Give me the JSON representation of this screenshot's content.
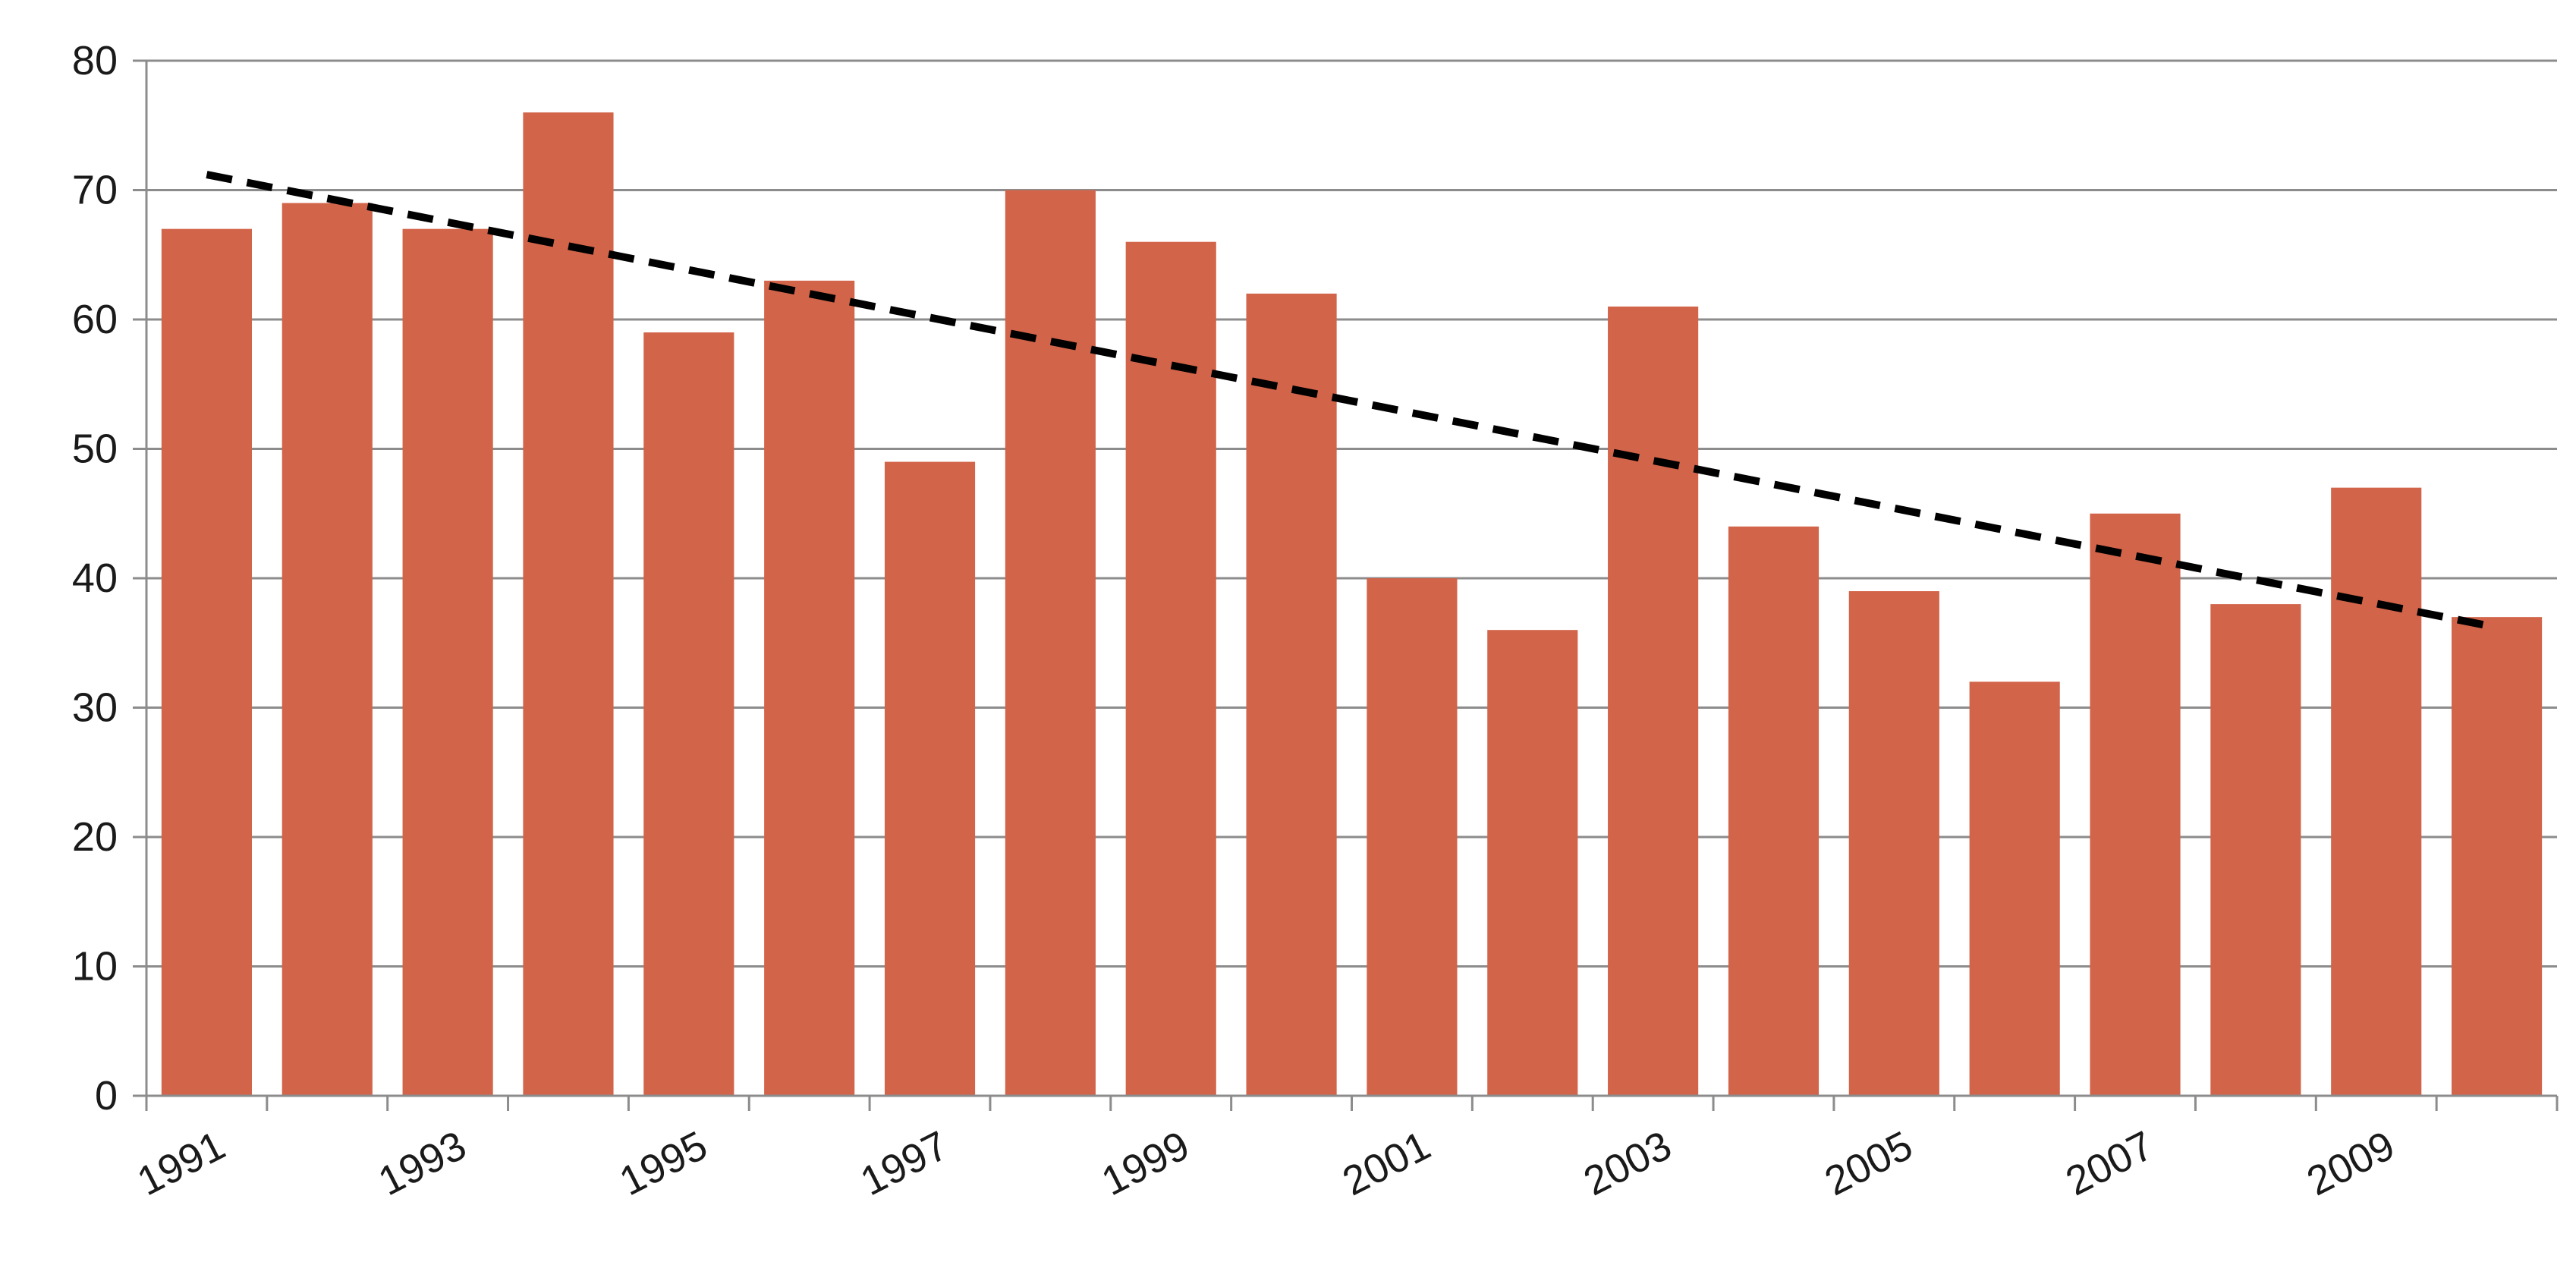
{
  "chart_data": {
    "type": "bar",
    "categories": [
      "1991",
      "1992",
      "1993",
      "1994",
      "1995",
      "1996",
      "1997",
      "1998",
      "1999",
      "2000",
      "2001",
      "2002",
      "2003",
      "2004",
      "2005",
      "2006",
      "2007",
      "2008",
      "2009",
      "2010"
    ],
    "values": [
      67,
      69,
      67,
      76,
      59,
      63,
      49,
      70,
      66,
      62,
      40,
      36,
      61,
      44,
      39,
      32,
      45,
      38,
      47,
      37
    ],
    "x_tick_labels": [
      "1991",
      "1993",
      "1995",
      "1997",
      "1999",
      "2001",
      "2003",
      "2005",
      "2007",
      "2009"
    ],
    "y_ticks": [
      0,
      10,
      20,
      30,
      40,
      50,
      60,
      70,
      80
    ],
    "ylim": [
      0,
      80
    ],
    "title": "",
    "xlabel": "",
    "ylabel": "",
    "grid": true,
    "legend": "none",
    "trendline": {
      "type": "linear",
      "style": "dashed",
      "color": "#000000",
      "start": 71.2,
      "end": 36.2
    },
    "colors": {
      "bar": "#D2644A",
      "grid": "#8c8c8c",
      "axis": "#8c8c8c",
      "trend": "#000000"
    }
  }
}
